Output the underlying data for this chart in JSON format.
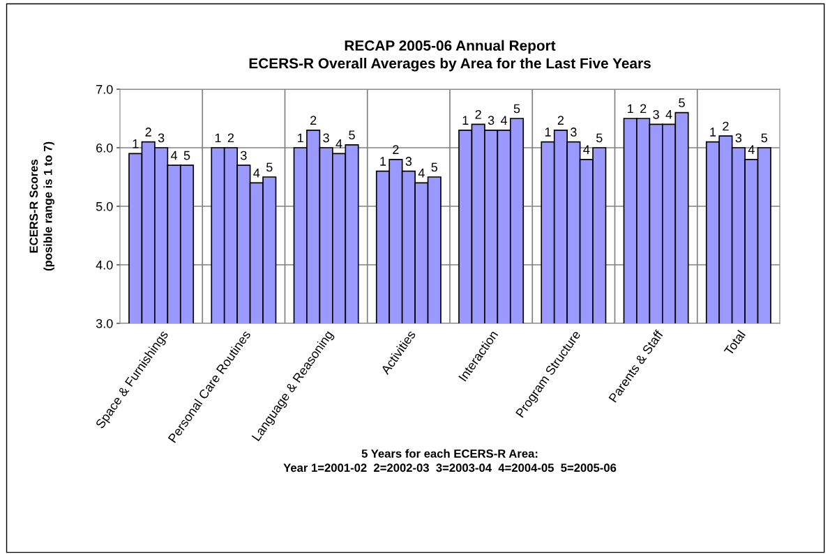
{
  "chart_data": {
    "type": "bar",
    "title": "RECAP 2005-06 Annual Report\nECERS-R Overall Averages by Area for the Last Five Years",
    "xlabel": "5 Years for each ECERS-R Area:\nYear 1=2001-02  2=2002-03  3=2003-04  4=2004-05  5=2005-06",
    "ylabel": "ECERS-R Scores\n(posible range is 1 to 7)",
    "categories": [
      "Space & Furnishings",
      "Personal Care Routines",
      "Language & Reasoning",
      "Activities",
      "Interaction",
      "Program Structure",
      "Parents & Staff",
      "Total"
    ],
    "series": [
      {
        "name": "1",
        "color": "#9999ff",
        "values": [
          5.9,
          6.0,
          6.0,
          5.6,
          6.3,
          6.1,
          6.5,
          6.1
        ]
      },
      {
        "name": "2",
        "color": "#9999ff",
        "values": [
          6.1,
          6.0,
          6.3,
          5.8,
          6.4,
          6.3,
          6.5,
          6.2
        ]
      },
      {
        "name": "3",
        "color": "#9999ff",
        "values": [
          6.0,
          5.7,
          6.0,
          5.6,
          6.3,
          6.1,
          6.4,
          6.0
        ]
      },
      {
        "name": "4",
        "color": "#9999ff",
        "values": [
          5.7,
          5.4,
          5.9,
          5.4,
          6.3,
          5.8,
          6.4,
          5.8
        ]
      },
      {
        "name": "5",
        "color": "#9999ff",
        "values": [
          5.7,
          5.5,
          6.05,
          5.5,
          6.5,
          6.0,
          6.6,
          6.0
        ]
      }
    ],
    "ylim": [
      3.0,
      7.0
    ],
    "yticks": [
      {
        "value": 3,
        "label": "3.0"
      },
      {
        "value": 4,
        "label": "4.0"
      },
      {
        "value": 5,
        "label": "5.0"
      },
      {
        "value": 6,
        "label": "6.0"
      },
      {
        "value": 7,
        "label": "7.0"
      }
    ],
    "grid": true,
    "legend": false
  }
}
